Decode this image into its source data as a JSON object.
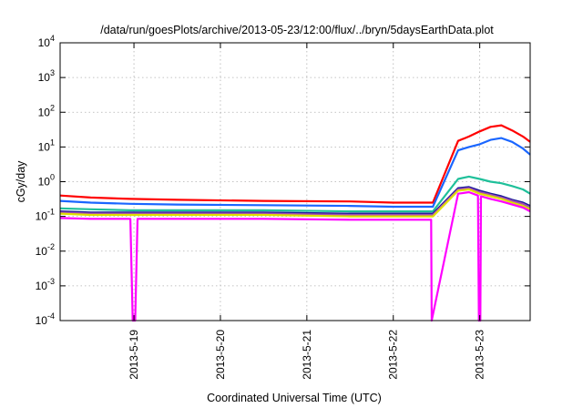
{
  "chart_data": {
    "type": "line",
    "title": "/data/run/goesPlots/archive/2013-05-23/12:00/flux/../bryn/5daysEarthData.plot",
    "xlabel": "Coordinated Universal Time (UTC)",
    "ylabel": "cGy/day",
    "y_scale": "log",
    "ylim": [
      0.0001,
      10000
    ],
    "y_ticks": [
      {
        "value": 0.0001,
        "base": "10",
        "exp": "-4"
      },
      {
        "value": 0.001,
        "base": "10",
        "exp": "-3"
      },
      {
        "value": 0.01,
        "base": "10",
        "exp": "-2"
      },
      {
        "value": 0.1,
        "base": "10",
        "exp": "-1"
      },
      {
        "value": 1,
        "base": "10",
        "exp": "0"
      },
      {
        "value": 10,
        "base": "10",
        "exp": "1"
      },
      {
        "value": 100,
        "base": "10",
        "exp": "2"
      },
      {
        "value": 1000,
        "base": "10",
        "exp": "3"
      },
      {
        "value": 10000,
        "base": "10",
        "exp": "4"
      }
    ],
    "xlim": [
      "2013-05-18 03:30",
      "2013-05-23 14:00"
    ],
    "x_ticks": [
      {
        "value": "2013-05-19 00:00",
        "label": "2013-5-19"
      },
      {
        "value": "2013-05-20 00:00",
        "label": "2013-5-20"
      },
      {
        "value": "2013-05-21 00:00",
        "label": "2013-5-21"
      },
      {
        "value": "2013-05-22 00:00",
        "label": "2013-5-22"
      },
      {
        "value": "2013-05-23 00:00",
        "label": "2013-5-23"
      }
    ],
    "grid": true,
    "series": [
      {
        "color": "#ff0000",
        "x": [
          "2013-05-18 03:30",
          "2013-05-18 12:00",
          "2013-05-18 23:00",
          "2013-05-19 12:00",
          "2013-05-20 12:00",
          "2013-05-21 12:00",
          "2013-05-22 00:00",
          "2013-05-22 11:00",
          "2013-05-22 18:00",
          "2013-05-22 21:00",
          "2013-05-23 00:00",
          "2013-05-23 03:00",
          "2013-05-23 06:00",
          "2013-05-23 09:00",
          "2013-05-23 12:00",
          "2013-05-23 14:00"
        ],
        "y": [
          0.4,
          0.35,
          0.32,
          0.3,
          0.28,
          0.27,
          0.25,
          0.25,
          15,
          20,
          28,
          38,
          42,
          30,
          20,
          14
        ]
      },
      {
        "color": "#1a66ff",
        "x": [
          "2013-05-18 03:30",
          "2013-05-18 12:00",
          "2013-05-18 23:00",
          "2013-05-19 12:00",
          "2013-05-20 12:00",
          "2013-05-21 12:00",
          "2013-05-22 00:00",
          "2013-05-22 11:00",
          "2013-05-22 18:00",
          "2013-05-22 21:00",
          "2013-05-23 00:00",
          "2013-05-23 03:00",
          "2013-05-23 06:00",
          "2013-05-23 09:00",
          "2013-05-23 12:00",
          "2013-05-23 14:00"
        ],
        "y": [
          0.28,
          0.25,
          0.23,
          0.22,
          0.21,
          0.2,
          0.19,
          0.19,
          8,
          10,
          12,
          16,
          18,
          14,
          9,
          6
        ]
      },
      {
        "color": "#1fc09a",
        "x": [
          "2013-05-18 03:30",
          "2013-05-18 12:00",
          "2013-05-18 23:00",
          "2013-05-19 12:00",
          "2013-05-20 12:00",
          "2013-05-21 12:00",
          "2013-05-22 00:00",
          "2013-05-22 11:00",
          "2013-05-22 18:00",
          "2013-05-22 21:00",
          "2013-05-23 00:00",
          "2013-05-23 03:00",
          "2013-05-23 06:00",
          "2013-05-23 09:00",
          "2013-05-23 12:00",
          "2013-05-23 14:00"
        ],
        "y": [
          0.17,
          0.16,
          0.15,
          0.15,
          0.15,
          0.14,
          0.14,
          0.14,
          1.2,
          1.4,
          1.2,
          1.0,
          0.9,
          0.75,
          0.6,
          0.45
        ]
      },
      {
        "color": "#1a1a99",
        "x": [
          "2013-05-18 03:30",
          "2013-05-18 12:00",
          "2013-05-18 23:00",
          "2013-05-19 12:00",
          "2013-05-20 12:00",
          "2013-05-21 12:00",
          "2013-05-22 00:00",
          "2013-05-22 11:00",
          "2013-05-22 18:00",
          "2013-05-22 21:00",
          "2013-05-23 00:00",
          "2013-05-23 03:00",
          "2013-05-23 06:00",
          "2013-05-23 09:00",
          "2013-05-23 12:00",
          "2013-05-23 14:00"
        ],
        "y": [
          0.14,
          0.13,
          0.13,
          0.13,
          0.13,
          0.12,
          0.12,
          0.12,
          0.65,
          0.7,
          0.55,
          0.45,
          0.38,
          0.3,
          0.25,
          0.2
        ]
      },
      {
        "color": "#a34db3",
        "x": [
          "2013-05-18 03:30",
          "2013-05-18 12:00",
          "2013-05-18 23:00",
          "2013-05-19 12:00",
          "2013-05-20 12:00",
          "2013-05-21 12:00",
          "2013-05-22 00:00",
          "2013-05-22 11:00",
          "2013-05-22 18:00",
          "2013-05-22 21:00",
          "2013-05-23 00:00",
          "2013-05-23 03:00",
          "2013-05-23 06:00",
          "2013-05-23 09:00",
          "2013-05-23 12:00",
          "2013-05-23 14:00"
        ],
        "y": [
          0.13,
          0.12,
          0.12,
          0.12,
          0.12,
          0.11,
          0.11,
          0.11,
          0.6,
          0.65,
          0.5,
          0.42,
          0.35,
          0.28,
          0.23,
          0.18
        ]
      },
      {
        "color": "#e0e000",
        "x": [
          "2013-05-18 03:30",
          "2013-05-18 12:00",
          "2013-05-18 23:00",
          "2013-05-19 12:00",
          "2013-05-20 12:00",
          "2013-05-21 12:00",
          "2013-05-22 00:00",
          "2013-05-22 11:00",
          "2013-05-22 18:00",
          "2013-05-22 21:00",
          "2013-05-23 00:00",
          "2013-05-23 03:00",
          "2013-05-23 06:00",
          "2013-05-23 09:00",
          "2013-05-23 12:00",
          "2013-05-23 14:00"
        ],
        "y": [
          0.12,
          0.11,
          0.11,
          0.11,
          0.11,
          0.1,
          0.1,
          0.1,
          0.55,
          0.6,
          0.45,
          0.38,
          0.32,
          0.25,
          0.2,
          0.16
        ]
      },
      {
        "color": "#ff00ff",
        "x": [
          "2013-05-18 03:30",
          "2013-05-18 12:00",
          "2013-05-18 23:00",
          "2013-05-18 23:40",
          "2013-05-19 00:20",
          "2013-05-19 01:00",
          "2013-05-19 12:00",
          "2013-05-20 12:00",
          "2013-05-21 12:00",
          "2013-05-22 00:00",
          "2013-05-22 10:30",
          "2013-05-22 10:40",
          "2013-05-22 18:00",
          "2013-05-22 21:00",
          "2013-05-22 23:30",
          "2013-05-22 23:45",
          "2013-05-23 00:10",
          "2013-05-23 00:20",
          "2013-05-23 03:00",
          "2013-05-23 06:00",
          "2013-05-23 09:00",
          "2013-05-23 12:00",
          "2013-05-23 14:00"
        ],
        "y": [
          0.09,
          0.085,
          0.085,
          0.0001,
          0.0001,
          0.085,
          0.085,
          0.085,
          0.08,
          0.08,
          0.08,
          0.0001,
          0.45,
          0.5,
          0.4,
          0.0001,
          0.0001,
          0.38,
          0.32,
          0.27,
          0.22,
          0.18,
          0.14
        ]
      }
    ]
  }
}
